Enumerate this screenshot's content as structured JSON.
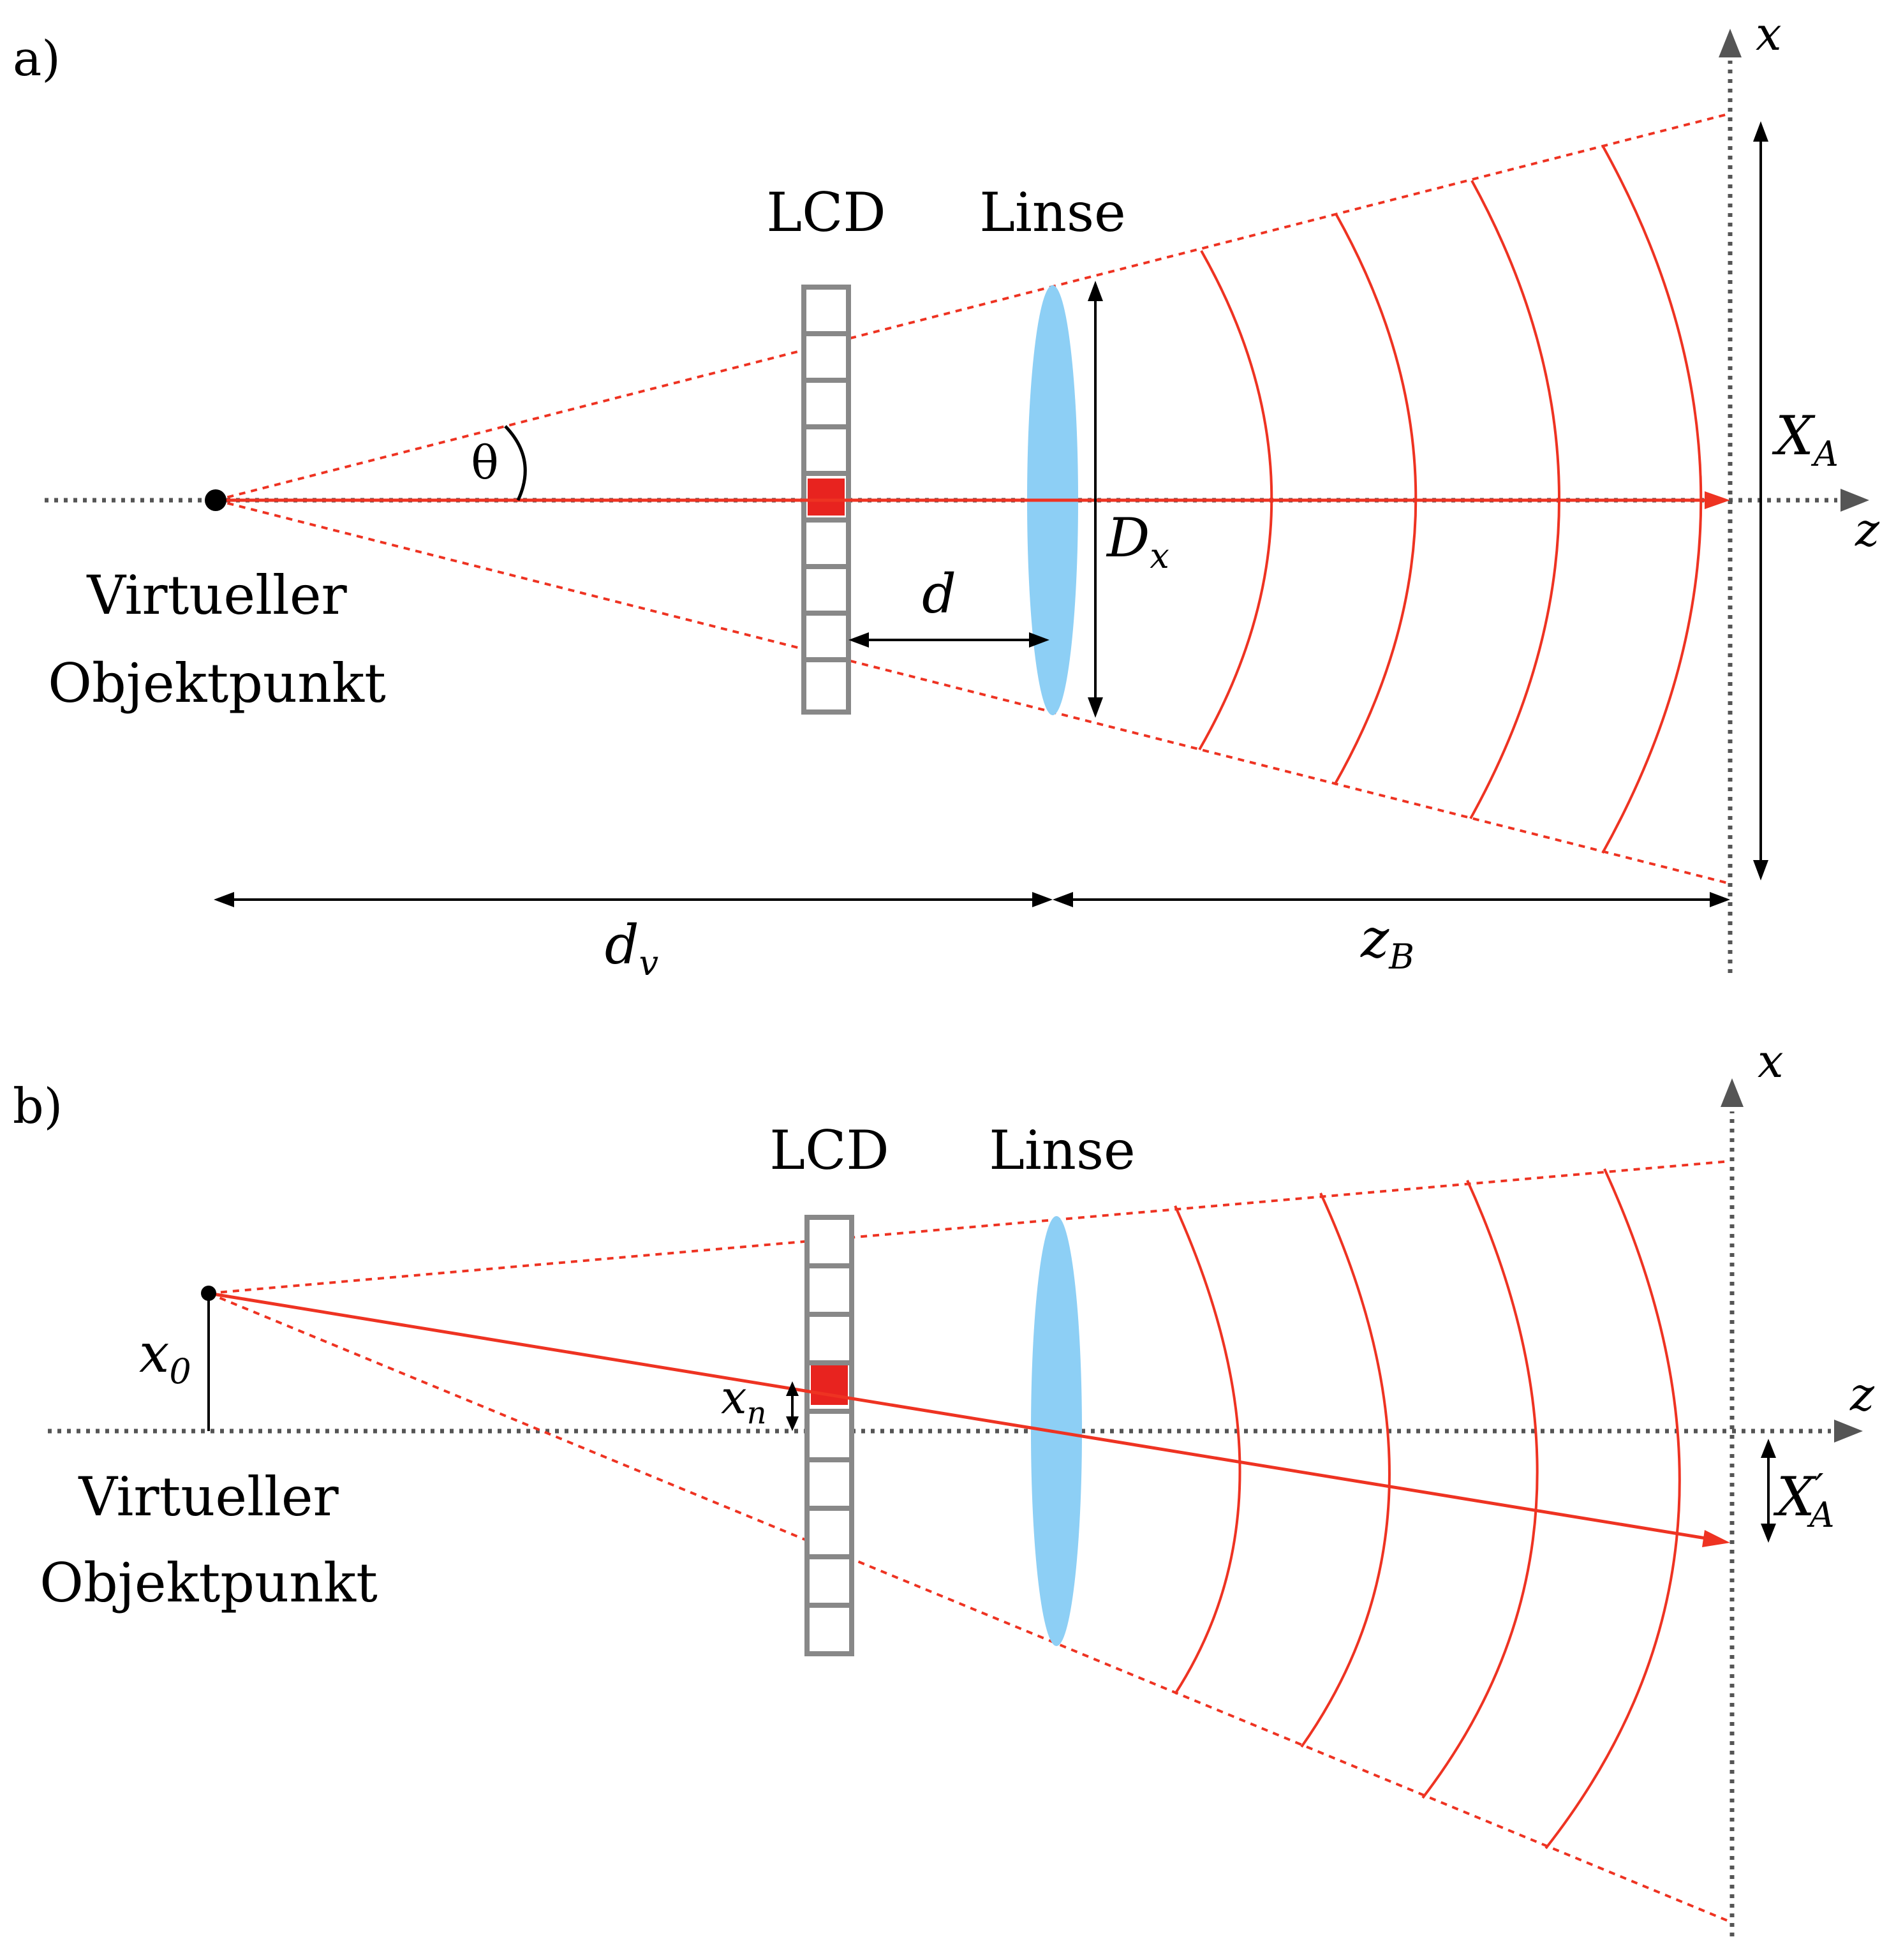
{
  "panels": [
    {
      "tag": "a)",
      "lcd": "LCD",
      "lens": "Linse",
      "object": [
        "Virtueller",
        "Objektpunkt"
      ],
      "symbols": {
        "theta": "θ",
        "x_axis": "x",
        "z_axis": "z",
        "d": "d",
        "dx": "D",
        "dx_sub": "x",
        "xa": "X",
        "xa_sub": "A",
        "dv": "d",
        "dv_sub": "v",
        "zb": "z",
        "zb_sub": "B"
      }
    },
    {
      "tag": "b)",
      "lcd": "LCD",
      "lens": "Linse",
      "object": [
        "Virtueller",
        "Objektpunkt"
      ],
      "symbols": {
        "x_axis": "x",
        "z_axis": "z",
        "x0": "x",
        "x0_sub": "0",
        "xn": "x",
        "xn_sub": "n",
        "xa": "X",
        "xa_prime": "′",
        "xa_sub": "A"
      }
    }
  ],
  "colors": {
    "ray": "#ee3322",
    "lens": "#8dcff5",
    "lcd_frame": "#888888",
    "axis": "#555555",
    "pixel": "#e8231f"
  }
}
